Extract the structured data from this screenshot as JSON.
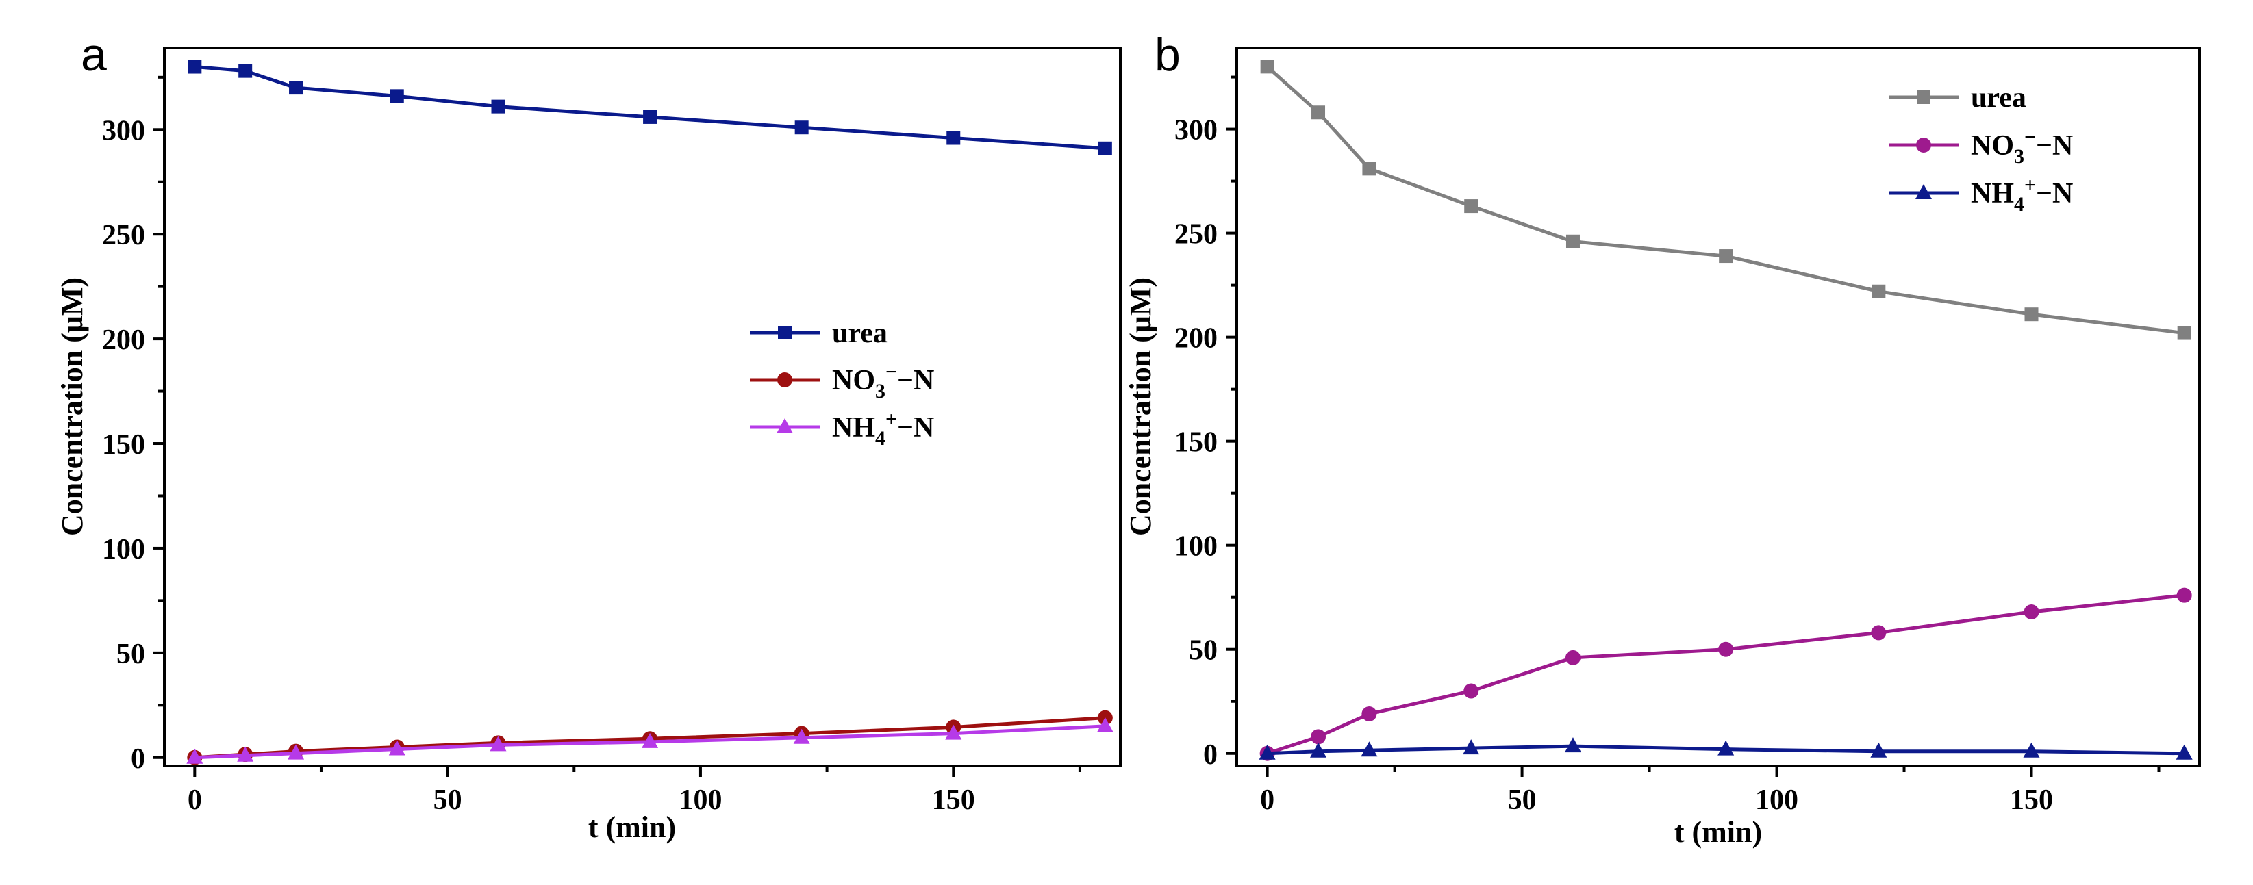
{
  "panels": [
    {
      "label": "a",
      "ylabel": "Concentration (μM)",
      "xlabel": "t (min)",
      "legend_position": "center-right",
      "legend": [
        {
          "base": "urea",
          "sub": "",
          "sup": "",
          "tail": ""
        },
        {
          "base": "NO",
          "sub": "3",
          "sup": "−",
          "tail": "−N"
        },
        {
          "base": "NH",
          "sub": "4",
          "sup": "+",
          "tail": "−N"
        }
      ]
    },
    {
      "label": "b",
      "ylabel": "Concentration (μM)",
      "xlabel": "t (min)",
      "legend_position": "top-right",
      "legend": [
        {
          "base": "urea",
          "sub": "",
          "sup": "",
          "tail": ""
        },
        {
          "base": "NO",
          "sub": "3",
          "sup": "−",
          "tail": "−N"
        },
        {
          "base": "NH",
          "sub": "4",
          "sup": "+",
          "tail": "−N"
        }
      ]
    }
  ],
  "chart_data": [
    {
      "type": "line",
      "panel": "a",
      "x": [
        0,
        10,
        20,
        40,
        60,
        90,
        120,
        150,
        180
      ],
      "xlim": [
        -6,
        183
      ],
      "ylim": [
        -4,
        339
      ],
      "xticks": [
        0,
        50,
        100,
        150
      ],
      "yticks": [
        0,
        50,
        100,
        150,
        200,
        250,
        300
      ],
      "xlabel": "t (min)",
      "ylabel": "Concentration (μM)",
      "series": [
        {
          "name": "urea",
          "marker": "square",
          "color": "#0a1a8c",
          "values": [
            330,
            328,
            320,
            316,
            311,
            306,
            301,
            296,
            291
          ]
        },
        {
          "name": "NO3−−N",
          "marker": "circle",
          "color": "#9e1010",
          "values": [
            0,
            1.5,
            3,
            5,
            7,
            9,
            11.5,
            14.5,
            19
          ]
        },
        {
          "name": "NH4+−N",
          "marker": "triangle",
          "color": "#b63ae8",
          "values": [
            0,
            1,
            2,
            4,
            6,
            7.5,
            9.5,
            11.5,
            15
          ]
        }
      ]
    },
    {
      "type": "line",
      "panel": "b",
      "x": [
        0,
        10,
        20,
        40,
        60,
        90,
        120,
        150,
        180
      ],
      "xlim": [
        -6,
        183
      ],
      "ylim": [
        -6,
        339
      ],
      "xticks": [
        0,
        50,
        100,
        150
      ],
      "yticks": [
        0,
        50,
        100,
        150,
        200,
        250,
        300
      ],
      "xlabel": "t (min)",
      "ylabel": "Concentration (μM)",
      "series": [
        {
          "name": "urea",
          "marker": "square",
          "color": "#808080",
          "values": [
            330,
            308,
            281,
            263,
            246,
            239,
            222,
            211,
            202
          ]
        },
        {
          "name": "NO3−−N",
          "marker": "circle",
          "color": "#9e1a8e",
          "values": [
            0,
            8,
            19,
            30,
            46,
            50,
            58,
            68,
            76
          ]
        },
        {
          "name": "NH4+−N",
          "marker": "triangle",
          "color": "#0d1a8c",
          "values": [
            0,
            1,
            1.5,
            2.5,
            3.5,
            2,
            1,
            1,
            0
          ]
        }
      ]
    }
  ]
}
